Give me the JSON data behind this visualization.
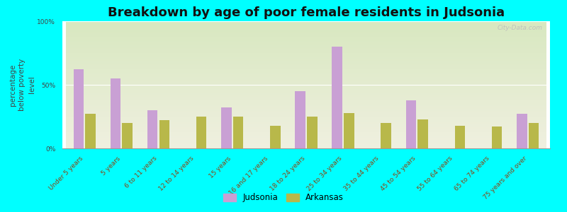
{
  "title": "Breakdown by age of poor female residents in Judsonia",
  "categories": [
    "Under 5 years",
    "5 years",
    "6 to 11 years",
    "12 to 14 years",
    "15 years",
    "16 and 17 years",
    "18 to 24 years",
    "25 to 34 years",
    "35 to 44 years",
    "45 to 54 years",
    "55 to 64 years",
    "65 to 74 years",
    "75 years and over"
  ],
  "judsonia_values": [
    62,
    55,
    30,
    0,
    32,
    0,
    45,
    80,
    0,
    38,
    0,
    0,
    27
  ],
  "arkansas_values": [
    27,
    20,
    22,
    25,
    25,
    18,
    25,
    28,
    20,
    23,
    18,
    17,
    20
  ],
  "judsonia_color": "#c9a0d4",
  "arkansas_color": "#b8b84a",
  "background_color": "#00ffff",
  "plot_bg_top": "#d8e8c0",
  "plot_bg_bottom": "#f0f0e0",
  "ylabel": "percentage\nbelow poverty\nlevel",
  "ylim": [
    0,
    100
  ],
  "yticks": [
    0,
    50,
    100
  ],
  "ytick_labels": [
    "0%",
    "50%",
    "100%"
  ],
  "title_fontsize": 13,
  "axis_label_fontsize": 7.5,
  "tick_fontsize": 6.5,
  "legend_judsonia": "Judsonia",
  "legend_arkansas": "Arkansas",
  "watermark": "City-Data.com"
}
